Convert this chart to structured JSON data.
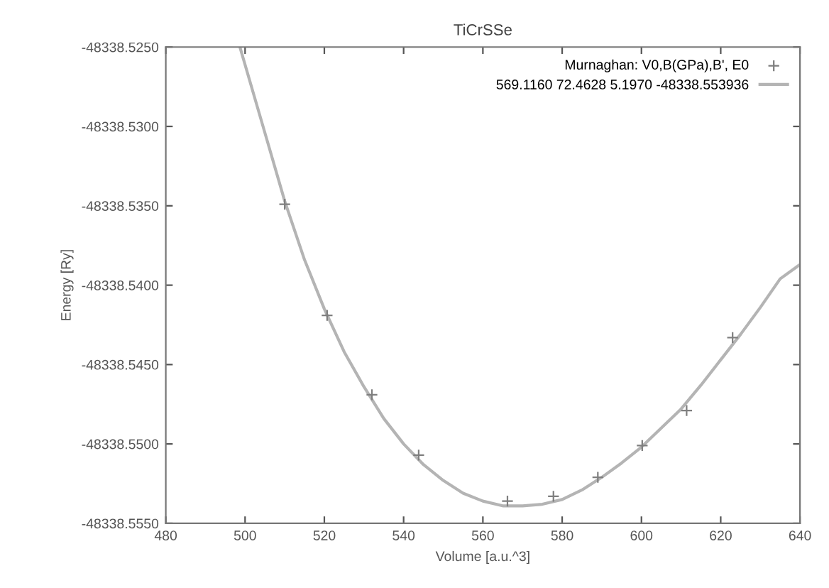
{
  "chart_data": {
    "type": "scatter",
    "title": "TiCrSSe",
    "xlabel": "Volume [a.u.^3]",
    "ylabel": "Energy [Ry]",
    "xlim": [
      480,
      640
    ],
    "xticks": [
      480,
      500,
      520,
      540,
      560,
      580,
      600,
      620,
      640
    ],
    "ylim": [
      -48338.555,
      -48338.525
    ],
    "yticks": [
      {
        "value": -48338.555,
        "label": "-48338.5550"
      },
      {
        "value": -48338.55,
        "label": "-48338.5500"
      },
      {
        "value": -48338.545,
        "label": "-48338.5450"
      },
      {
        "value": -48338.54,
        "label": "-48338.5400"
      },
      {
        "value": -48338.535,
        "label": "-48338.5350"
      },
      {
        "value": -48338.53,
        "label": "-48338.5300"
      },
      {
        "value": -48338.525,
        "label": "-48338.5250"
      }
    ],
    "grid": false,
    "legend": "top right",
    "series": [
      {
        "name": "Murnaghan: V0,B(GPa),B', E0",
        "marker": "cross",
        "color": "#7f7f7f",
        "x": [
          510,
          520.7,
          532,
          543.8,
          566.2,
          577.8,
          589,
          600.2,
          611.4,
          623
        ],
        "values": [
          -48338.5349,
          -48338.5419,
          -48338.5469,
          -48338.5507,
          -48338.5536,
          -48338.5533,
          -48338.5521,
          -48338.5501,
          -48338.5479,
          -48338.5433
        ]
      },
      {
        "name": "569.1160 72.4628 5.1970 -48338.553936",
        "type": "line",
        "marker": "none",
        "line_style": "solid",
        "color": "#b4b4b4",
        "x": [
          498.7,
          505,
          510,
          515,
          520,
          525,
          530,
          535,
          540,
          545,
          550,
          555,
          560,
          565,
          570,
          575,
          580,
          585,
          590,
          595,
          600,
          605,
          610,
          615,
          620,
          625,
          630,
          635,
          640
        ],
        "values": [
          -48338.525,
          -48338.5304,
          -48338.5347,
          -48338.5384,
          -48338.5415,
          -48338.5442,
          -48338.5464,
          -48338.5484,
          -48338.55,
          -48338.5513,
          -48338.5523,
          -48338.5531,
          -48338.5536,
          -48338.5539,
          -48338.5539,
          -48338.5538,
          -48338.5535,
          -48338.5529,
          -48338.5521,
          -48338.5512,
          -48338.5502,
          -48338.549,
          -48338.5478,
          -48338.5463,
          -48338.5447,
          -48338.5431,
          -48338.5414,
          -48338.5396,
          -48338.5387
        ]
      }
    ]
  }
}
